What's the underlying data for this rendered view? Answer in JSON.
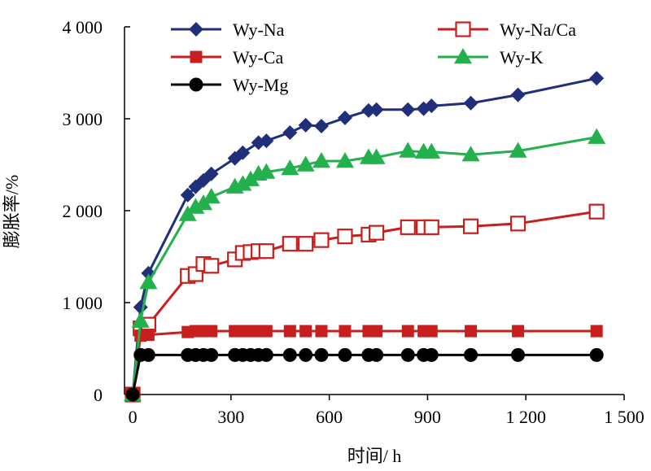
{
  "chart_data": {
    "type": "line",
    "xlabel": "时间/ h",
    "ylabel": "膨胀率/%",
    "xlim": [
      -25,
      1500
    ],
    "ylim": [
      0,
      4000
    ],
    "x_ticks": [
      0,
      300,
      600,
      900,
      1200,
      1500
    ],
    "x_tick_labels": [
      "0",
      "300",
      "600",
      "900",
      "1 200",
      "1 500"
    ],
    "y_ticks": [
      0,
      1000,
      2000,
      3000,
      4000
    ],
    "y_tick_labels": [
      "0",
      "1 000",
      "2 000",
      "3 000",
      "4 000"
    ],
    "legend_position": "top",
    "series": [
      {
        "name": "Wy-Na",
        "color": "#1f2f7a",
        "marker": "diamond",
        "points": [
          [
            0,
            0
          ],
          [
            24,
            950
          ],
          [
            48,
            1320
          ],
          [
            168,
            2170
          ],
          [
            192,
            2260
          ],
          [
            216,
            2330
          ],
          [
            240,
            2400
          ],
          [
            312,
            2570
          ],
          [
            336,
            2630
          ],
          [
            384,
            2740
          ],
          [
            408,
            2760
          ],
          [
            480,
            2850
          ],
          [
            528,
            2930
          ],
          [
            576,
            2920
          ],
          [
            648,
            3010
          ],
          [
            720,
            3090
          ],
          [
            744,
            3100
          ],
          [
            840,
            3100
          ],
          [
            888,
            3110
          ],
          [
            912,
            3140
          ],
          [
            1032,
            3170
          ],
          [
            1176,
            3260
          ],
          [
            1416,
            3440
          ]
        ]
      },
      {
        "name": "Wy-Na/Ca",
        "color": "#c81e1e",
        "marker": "square-open",
        "points": [
          [
            0,
            0
          ],
          [
            24,
            720
          ],
          [
            48,
            760
          ],
          [
            168,
            1290
          ],
          [
            192,
            1310
          ],
          [
            216,
            1420
          ],
          [
            240,
            1400
          ],
          [
            312,
            1470
          ],
          [
            336,
            1540
          ],
          [
            360,
            1550
          ],
          [
            384,
            1560
          ],
          [
            408,
            1560
          ],
          [
            480,
            1640
          ],
          [
            528,
            1640
          ],
          [
            576,
            1680
          ],
          [
            648,
            1720
          ],
          [
            720,
            1740
          ],
          [
            744,
            1760
          ],
          [
            840,
            1820
          ],
          [
            888,
            1820
          ],
          [
            912,
            1820
          ],
          [
            1032,
            1830
          ],
          [
            1176,
            1860
          ],
          [
            1416,
            1990
          ]
        ]
      },
      {
        "name": "Wy-Ca",
        "color": "#c81e1e",
        "marker": "square",
        "points": [
          [
            0,
            0
          ],
          [
            24,
            640
          ],
          [
            48,
            650
          ],
          [
            168,
            680
          ],
          [
            192,
            690
          ],
          [
            216,
            690
          ],
          [
            240,
            690
          ],
          [
            312,
            690
          ],
          [
            336,
            690
          ],
          [
            360,
            690
          ],
          [
            384,
            690
          ],
          [
            408,
            690
          ],
          [
            480,
            690
          ],
          [
            528,
            690
          ],
          [
            576,
            690
          ],
          [
            648,
            690
          ],
          [
            720,
            690
          ],
          [
            744,
            690
          ],
          [
            840,
            690
          ],
          [
            888,
            690
          ],
          [
            912,
            690
          ],
          [
            1032,
            690
          ],
          [
            1176,
            690
          ],
          [
            1416,
            690
          ]
        ]
      },
      {
        "name": "Wy-K",
        "color": "#22b14c",
        "marker": "triangle",
        "points": [
          [
            0,
            0
          ],
          [
            24,
            800
          ],
          [
            48,
            1220
          ],
          [
            168,
            1960
          ],
          [
            192,
            2040
          ],
          [
            216,
            2080
          ],
          [
            240,
            2150
          ],
          [
            312,
            2260
          ],
          [
            336,
            2290
          ],
          [
            360,
            2340
          ],
          [
            384,
            2400
          ],
          [
            408,
            2420
          ],
          [
            480,
            2460
          ],
          [
            528,
            2500
          ],
          [
            576,
            2540
          ],
          [
            648,
            2540
          ],
          [
            720,
            2580
          ],
          [
            744,
            2580
          ],
          [
            840,
            2650
          ],
          [
            888,
            2640
          ],
          [
            912,
            2640
          ],
          [
            1032,
            2610
          ],
          [
            1176,
            2650
          ],
          [
            1416,
            2800
          ]
        ]
      },
      {
        "name": "Wy-Mg",
        "color": "#000000",
        "marker": "circle",
        "points": [
          [
            0,
            0
          ],
          [
            24,
            430
          ],
          [
            48,
            430
          ],
          [
            168,
            430
          ],
          [
            192,
            430
          ],
          [
            216,
            430
          ],
          [
            240,
            430
          ],
          [
            312,
            430
          ],
          [
            336,
            430
          ],
          [
            360,
            430
          ],
          [
            384,
            430
          ],
          [
            408,
            430
          ],
          [
            480,
            430
          ],
          [
            528,
            430
          ],
          [
            576,
            430
          ],
          [
            648,
            430
          ],
          [
            720,
            430
          ],
          [
            744,
            430
          ],
          [
            840,
            430
          ],
          [
            888,
            430
          ],
          [
            912,
            430
          ],
          [
            1032,
            430
          ],
          [
            1176,
            430
          ],
          [
            1416,
            430
          ]
        ]
      }
    ],
    "legend": [
      {
        "name": "Wy-Na",
        "column": 0,
        "row": 0
      },
      {
        "name": "Wy-Ca",
        "column": 0,
        "row": 1
      },
      {
        "name": "Wy-Mg",
        "column": 0,
        "row": 2
      },
      {
        "name": "Wy-Na/Ca",
        "column": 1,
        "row": 0
      },
      {
        "name": "Wy-K",
        "column": 1,
        "row": 1
      }
    ]
  }
}
